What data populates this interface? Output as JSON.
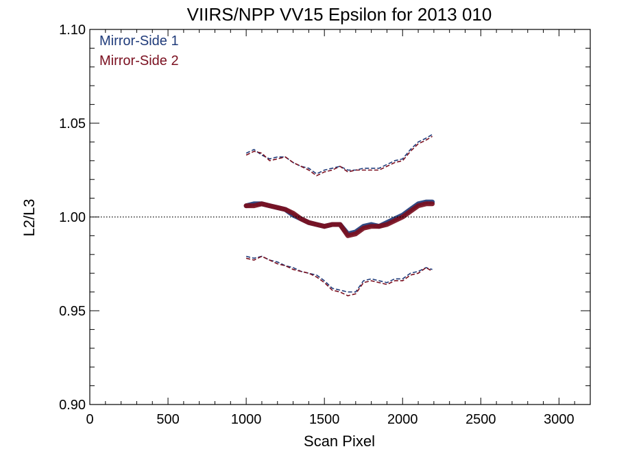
{
  "chart_data": {
    "type": "line",
    "title": "VIIRS/NPP VV15 Epsilon for 2013 010",
    "xlabel": "Scan Pixel",
    "ylabel": "L2/L3",
    "xlim": [
      0,
      3200
    ],
    "ylim": [
      0.9,
      1.1
    ],
    "x_ticks": [
      0,
      500,
      1000,
      1500,
      2000,
      2500,
      3000
    ],
    "x_tick_labels": [
      "0",
      "500",
      "1000",
      "1500",
      "2000",
      "2500",
      "3000"
    ],
    "y_ticks": [
      0.9,
      0.95,
      1.0,
      1.05,
      1.1
    ],
    "y_tick_labels": [
      "0.90",
      "0.95",
      "1.00",
      "1.05",
      "1.10"
    ],
    "reference_line": {
      "y": 1.0,
      "style": "dotted",
      "color": "#000000"
    },
    "legend": {
      "placement": "top-left"
    },
    "colors": {
      "mirror_side_1": "#1f3b7a",
      "mirror_side_2": "#7a0f1f"
    },
    "x": [
      1000,
      1050,
      1100,
      1150,
      1200,
      1250,
      1300,
      1350,
      1400,
      1450,
      1500,
      1550,
      1600,
      1650,
      1700,
      1750,
      1800,
      1850,
      1900,
      1950,
      2000,
      2050,
      2100,
      2150,
      2190
    ],
    "series": [
      {
        "name": "Mirror-Side 1",
        "key": "mirror_side_1",
        "mean": [
          1.006,
          1.007,
          1.007,
          1.006,
          1.005,
          1.004,
          1.001,
          0.999,
          0.997,
          0.996,
          0.995,
          0.996,
          0.996,
          0.991,
          0.992,
          0.995,
          0.996,
          0.995,
          0.997,
          0.999,
          1.001,
          1.004,
          1.007,
          1.008,
          1.008
        ],
        "upper": [
          1.034,
          1.036,
          1.033,
          1.031,
          1.032,
          1.032,
          1.029,
          1.027,
          1.026,
          1.023,
          1.025,
          1.026,
          1.027,
          1.025,
          1.025,
          1.026,
          1.026,
          1.026,
          1.028,
          1.03,
          1.031,
          1.036,
          1.04,
          1.042,
          1.044
        ],
        "lower": [
          0.979,
          0.978,
          0.979,
          0.977,
          0.976,
          0.974,
          0.973,
          0.971,
          0.97,
          0.969,
          0.966,
          0.962,
          0.961,
          0.96,
          0.96,
          0.966,
          0.967,
          0.966,
          0.965,
          0.967,
          0.967,
          0.97,
          0.971,
          0.973,
          0.972
        ]
      },
      {
        "name": "Mirror-Side 2",
        "key": "mirror_side_2",
        "mean": [
          1.006,
          1.006,
          1.007,
          1.006,
          1.005,
          1.004,
          1.002,
          0.999,
          0.997,
          0.996,
          0.995,
          0.996,
          0.996,
          0.99,
          0.991,
          0.994,
          0.995,
          0.995,
          0.996,
          0.998,
          1.0,
          1.003,
          1.006,
          1.007,
          1.007
        ],
        "upper": [
          1.033,
          1.035,
          1.034,
          1.03,
          1.031,
          1.032,
          1.029,
          1.027,
          1.025,
          1.022,
          1.024,
          1.025,
          1.027,
          1.024,
          1.025,
          1.025,
          1.025,
          1.025,
          1.027,
          1.029,
          1.03,
          1.035,
          1.039,
          1.041,
          1.043
        ],
        "lower": [
          0.978,
          0.977,
          0.979,
          0.977,
          0.975,
          0.974,
          0.972,
          0.971,
          0.97,
          0.968,
          0.965,
          0.961,
          0.96,
          0.958,
          0.959,
          0.965,
          0.966,
          0.965,
          0.964,
          0.966,
          0.966,
          0.969,
          0.97,
          0.973,
          0.971
        ]
      }
    ]
  }
}
